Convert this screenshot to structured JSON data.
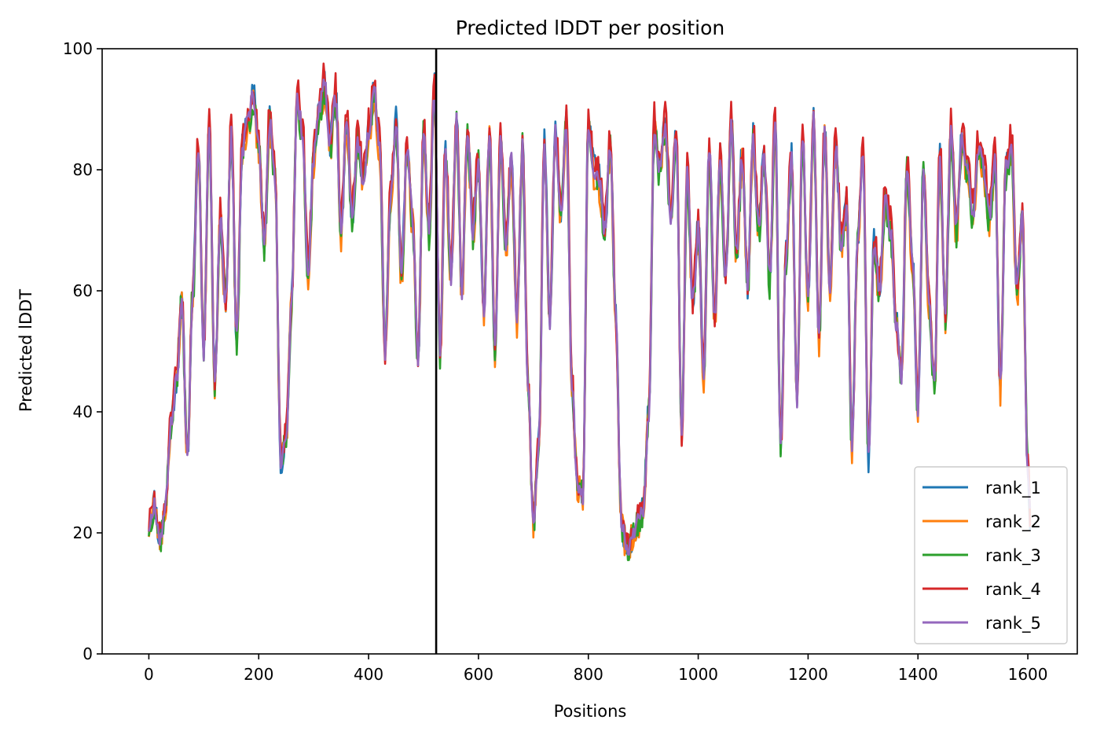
{
  "chart_data": {
    "type": "line",
    "title": "Predicted lDDT per position",
    "xlabel": "Positions",
    "ylabel": "Predicted lDDT",
    "xlim": [
      -85,
      1690
    ],
    "ylim": [
      0,
      100
    ],
    "xticks": [
      0,
      200,
      400,
      600,
      800,
      1000,
      1200,
      1400,
      1600
    ],
    "yticks": [
      0,
      20,
      40,
      60,
      80,
      100
    ],
    "grid": false,
    "legend_position": "lower-right",
    "vline_x": 523,
    "vline_color": "#000000",
    "base": {
      "x": [
        0,
        10,
        20,
        30,
        40,
        50,
        60,
        70,
        80,
        90,
        100,
        110,
        120,
        130,
        140,
        150,
        160,
        170,
        180,
        190,
        200,
        210,
        220,
        230,
        240,
        250,
        260,
        270,
        280,
        290,
        300,
        310,
        320,
        330,
        340,
        350,
        360,
        370,
        380,
        390,
        400,
        410,
        420,
        430,
        440,
        450,
        460,
        470,
        480,
        490,
        500,
        510,
        520,
        530,
        540,
        550,
        560,
        570,
        580,
        590,
        600,
        610,
        620,
        630,
        640,
        650,
        660,
        670,
        680,
        690,
        700,
        710,
        720,
        730,
        740,
        750,
        760,
        770,
        780,
        790,
        800,
        810,
        820,
        830,
        840,
        850,
        860,
        870,
        880,
        890,
        900,
        910,
        920,
        930,
        940,
        950,
        960,
        970,
        980,
        990,
        1000,
        1010,
        1020,
        1030,
        1040,
        1050,
        1060,
        1070,
        1080,
        1090,
        1100,
        1110,
        1120,
        1130,
        1140,
        1150,
        1160,
        1170,
        1180,
        1190,
        1200,
        1210,
        1220,
        1230,
        1240,
        1250,
        1260,
        1270,
        1280,
        1290,
        1300,
        1310,
        1320,
        1330,
        1340,
        1350,
        1360,
        1370,
        1380,
        1390,
        1400,
        1410,
        1420,
        1430,
        1440,
        1450,
        1460,
        1470,
        1480,
        1490,
        1500,
        1510,
        1520,
        1530,
        1540,
        1550,
        1560,
        1570,
        1580,
        1590,
        1600,
        1605
      ],
      "y": [
        21,
        25,
        19,
        24,
        38,
        45,
        58,
        33,
        60,
        84,
        50,
        88,
        45,
        72,
        58,
        86,
        52,
        83,
        88,
        92,
        84,
        67,
        88,
        78,
        32,
        36,
        58,
        92,
        86,
        62,
        82,
        90,
        94,
        84,
        92,
        70,
        88,
        72,
        85,
        78,
        86,
        93,
        84,
        50,
        75,
        88,
        62,
        84,
        72,
        48,
        86,
        70,
        93,
        50,
        82,
        62,
        88,
        60,
        86,
        70,
        82,
        56,
        86,
        50,
        84,
        68,
        82,
        55,
        84,
        45,
        22,
        35,
        84,
        55,
        86,
        72,
        88,
        45,
        28,
        26,
        88,
        80,
        78,
        70,
        84,
        55,
        22,
        17,
        19,
        22,
        24,
        40,
        87,
        80,
        88,
        72,
        85,
        36,
        80,
        58,
        70,
        46,
        84,
        55,
        82,
        62,
        88,
        66,
        82,
        60,
        85,
        70,
        82,
        62,
        88,
        34,
        66,
        82,
        42,
        86,
        58,
        88,
        52,
        86,
        60,
        84,
        68,
        74,
        34,
        68,
        82,
        32,
        68,
        60,
        75,
        70,
        55,
        46,
        80,
        64,
        40,
        80,
        58,
        44,
        82,
        56,
        86,
        70,
        85,
        80,
        72,
        84,
        80,
        72,
        82,
        44,
        80,
        84,
        60,
        72,
        30,
        22
      ]
    },
    "series": [
      {
        "name": "rank_1",
        "color": "#1f77b4",
        "seed": 11,
        "amp": 2.6,
        "bias": 0.4
      },
      {
        "name": "rank_2",
        "color": "#ff7f0e",
        "seed": 23,
        "amp": 2.8,
        "bias": -0.8
      },
      {
        "name": "rank_3",
        "color": "#2ca02c",
        "seed": 37,
        "amp": 2.8,
        "bias": -0.6
      },
      {
        "name": "rank_4",
        "color": "#d62728",
        "seed": 51,
        "amp": 2.6,
        "bias": 1.6
      },
      {
        "name": "rank_5",
        "color": "#9467bd",
        "seed": 67,
        "amp": 1.6,
        "bias": 0.0
      }
    ]
  }
}
